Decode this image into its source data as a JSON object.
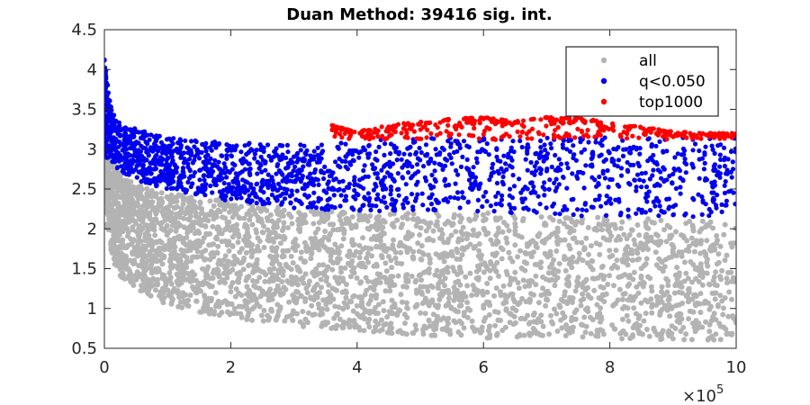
{
  "chart_data": {
    "type": "scatter",
    "title": "Duan Method: 39416 sig. int.",
    "xlabel": "",
    "ylabel": "",
    "xlim": [
      0,
      1000000
    ],
    "ylim": [
      0.5,
      4.5
    ],
    "x_ticks": [
      0,
      200000,
      400000,
      600000,
      800000,
      1000000
    ],
    "x_tick_labels": [
      "0",
      "2",
      "4",
      "6",
      "8",
      "10"
    ],
    "x_multiplier_base": "×10",
    "x_multiplier_exp": "5",
    "y_ticks": [
      0.5,
      1,
      1.5,
      2,
      2.5,
      3,
      3.5,
      4,
      4.5
    ],
    "y_tick_labels": [
      "0.5",
      "1",
      "1.5",
      "2",
      "2.5",
      "3",
      "3.5",
      "4",
      "4.5"
    ],
    "grid": false,
    "legend_position": "top-right",
    "series": [
      {
        "name": "all",
        "color": "#b3b3b3",
        "envelope": {
          "x": [
            0,
            5000,
            10000,
            20000,
            40000,
            70000,
            100000,
            150000,
            200000,
            300000,
            400000,
            500000,
            600000,
            700000,
            800000,
            900000,
            1000000
          ],
          "lower": [
            2.4,
            2.0,
            1.75,
            1.45,
            1.3,
            1.15,
            1.05,
            0.95,
            0.88,
            0.78,
            0.72,
            0.66,
            0.63,
            0.62,
            0.61,
            0.6,
            0.6
          ],
          "upper": [
            3.95,
            3.3,
            3.0,
            2.75,
            2.6,
            2.5,
            2.45,
            2.4,
            2.35,
            2.25,
            2.2,
            2.2,
            2.2,
            2.15,
            2.15,
            2.12,
            2.1
          ]
        }
      },
      {
        "name": "q<0.050",
        "color": "#0000ee",
        "envelope": {
          "x": [
            0,
            10000,
            20000,
            40000,
            70000,
            100000,
            150000,
            200000,
            300000,
            400000,
            500000,
            600000,
            700000,
            800000,
            900000,
            1000000
          ],
          "lower": [
            2.9,
            2.85,
            2.75,
            2.65,
            2.55,
            2.5,
            2.42,
            2.35,
            2.25,
            2.22,
            2.22,
            2.22,
            2.18,
            2.15,
            2.15,
            2.15
          ],
          "upper": [
            4.15,
            3.55,
            3.35,
            3.3,
            3.2,
            3.15,
            3.1,
            3.1,
            3.05,
            3.1,
            3.15,
            3.15,
            3.15,
            3.15,
            3.15,
            3.15
          ]
        }
      },
      {
        "name": "top1000",
        "color": "#ff0000",
        "envelope": {
          "x": [
            360000,
            400000,
            450000,
            500000,
            550000,
            600000,
            650000,
            700000,
            750000,
            800000,
            850000,
            900000,
            950000,
            1000000
          ],
          "lower": [
            3.15,
            3.12,
            3.12,
            3.12,
            3.12,
            3.12,
            3.12,
            3.12,
            3.12,
            3.12,
            3.12,
            3.12,
            3.12,
            3.12
          ],
          "upper": [
            3.3,
            3.22,
            3.3,
            3.35,
            3.38,
            3.4,
            3.35,
            3.4,
            3.4,
            3.33,
            3.28,
            3.22,
            3.2,
            3.2
          ]
        }
      }
    ]
  }
}
